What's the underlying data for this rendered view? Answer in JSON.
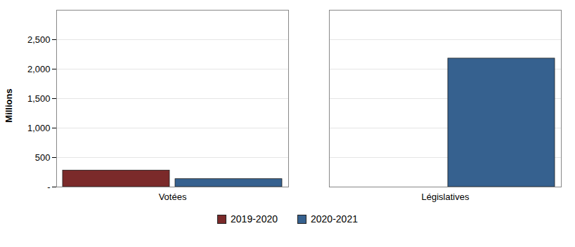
{
  "chart_data": {
    "type": "bar",
    "categories": [
      "Votées",
      "Législatives"
    ],
    "series": [
      {
        "name": "2019-2020",
        "color": "#7b2a2a",
        "values": [
          280,
          0
        ]
      },
      {
        "name": "2020-2021",
        "color": "#36618f",
        "values": [
          135,
          2180
        ]
      }
    ],
    "ylabel": "Millions",
    "ylim": [
      0,
      3000
    ],
    "yticks": [
      {
        "value": 0,
        "label": "-"
      },
      500,
      {
        "value": 1000,
        "label": "1,000"
      },
      {
        "value": 1500,
        "label": "1,500"
      },
      {
        "value": 2000,
        "label": "2,000"
      },
      {
        "value": 2500,
        "label": "2,500"
      }
    ],
    "grid": true,
    "legend": "bottom"
  }
}
